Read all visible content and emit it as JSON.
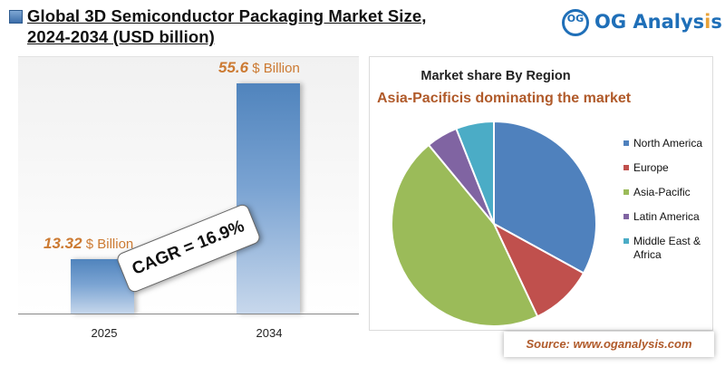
{
  "header": {
    "title_line1": "Global 3D Semiconductor Packaging Market Size,",
    "title_line2": "2024-2034 (USD billion)"
  },
  "logo": {
    "circle_text": "OG",
    "name_main": "OG Analys",
    "name_accent": "i",
    "name_tail": "s"
  },
  "cagr_label": "CAGR = 16.9%",
  "source": "Source: www.oganalysis.com",
  "chart_data": [
    {
      "type": "bar",
      "categories": [
        "2025",
        "2034"
      ],
      "values": [
        13.32,
        55.6
      ],
      "value_labels": [
        "13.32",
        "55.6"
      ],
      "value_unit": "$ Billion",
      "title": "",
      "xlabel": "",
      "ylabel": "",
      "ylim": [
        0,
        62
      ],
      "grid": false,
      "colors": [
        "#4f83bc"
      ]
    },
    {
      "type": "pie",
      "title": "Market share By Region",
      "subtitle": "Asia-Pacificis dominating the market",
      "categories": [
        "North America",
        "Europe",
        "Asia-Pacific",
        "Latin America",
        "Middle East & Africa"
      ],
      "values": [
        33,
        10,
        46,
        5,
        6
      ],
      "colors": [
        "#4f81bd",
        "#c0504d",
        "#9bbb59",
        "#8064a2",
        "#4bacc6"
      ],
      "legend": "right"
    }
  ]
}
